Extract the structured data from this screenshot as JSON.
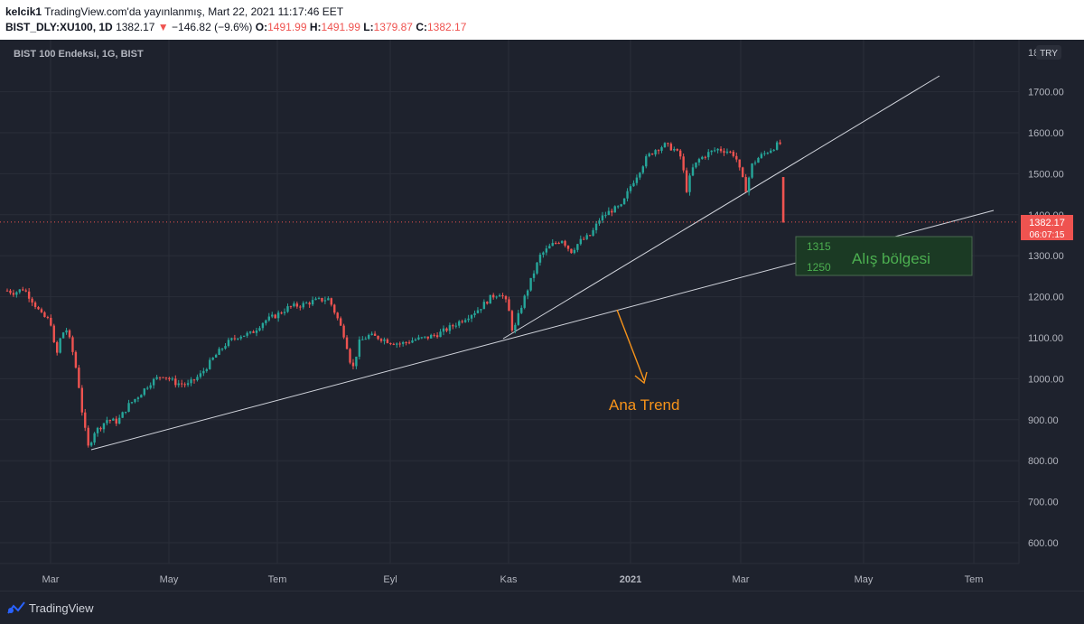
{
  "header": {
    "author": "kelcik1",
    "published": "TradingView.com'da yayınlanmış, Mart 22, 2021 11:17:46 EET",
    "symbol": "BIST_DLY:XU100, 1D",
    "last": "1382.17",
    "change": "−146.82 (−9.6%)",
    "o_label": "O:",
    "o": "1491.99",
    "h_label": "H:",
    "h": "1491.99",
    "l_label": "L:",
    "l": "1379.87",
    "c_label": "C:",
    "c": "1382.17"
  },
  "chart": {
    "legend": "BIST 100 Endeksi, 1G, BIST",
    "currency": "TRY",
    "price_label": "1382.17",
    "countdown": "06:07:15",
    "axis_top_label": "18"
  },
  "annotations": {
    "zone_top": "1315",
    "zone_bottom": "1250",
    "zone_label": "Alış bölgesi",
    "trend_label": "Ana Trend"
  },
  "footer": {
    "brand": "TradingView"
  },
  "colors": {
    "bg": "#1e222d",
    "up": "#26a69a",
    "down": "#ef5350",
    "trendline": "#d1d4dc",
    "zone_fill": "#1b3a24",
    "zone_text": "#4caf50",
    "annotation": "#f7931a",
    "grid": "#2a2e39",
    "axis_text": "#b2b5be"
  },
  "chart_data": {
    "type": "candlestick",
    "symbol": "BIST_DLY:XU100",
    "interval": "1D",
    "ylim": [
      550,
      1800
    ],
    "y_ticks": [
      600,
      700,
      800,
      900,
      1000,
      1100,
      1200,
      1300,
      1400,
      1500,
      1600,
      1700
    ],
    "x_tick_labels": [
      "Mar",
      "May",
      "Tem",
      "Eyl",
      "Kas",
      "2021",
      "Mar",
      "May",
      "Tem"
    ],
    "last_price": 1382.17,
    "price_path": [
      [
        0,
        1215
      ],
      [
        8,
        1210
      ],
      [
        18,
        1220
      ],
      [
        28,
        1190
      ],
      [
        38,
        1155
      ],
      [
        48,
        1140
      ],
      [
        54,
        1050
      ],
      [
        60,
        1110
      ],
      [
        66,
        1120
      ],
      [
        72,
        1070
      ],
      [
        78,
        1005
      ],
      [
        84,
        900
      ],
      [
        90,
        830
      ],
      [
        96,
        870
      ],
      [
        102,
        880
      ],
      [
        110,
        900
      ],
      [
        122,
        895
      ],
      [
        134,
        935
      ],
      [
        146,
        960
      ],
      [
        158,
        990
      ],
      [
        172,
        1010
      ],
      [
        186,
        990
      ],
      [
        200,
        985
      ],
      [
        214,
        1010
      ],
      [
        228,
        1050
      ],
      [
        242,
        1085
      ],
      [
        256,
        1105
      ],
      [
        270,
        1110
      ],
      [
        284,
        1140
      ],
      [
        298,
        1155
      ],
      [
        312,
        1175
      ],
      [
        326,
        1180
      ],
      [
        340,
        1190
      ],
      [
        356,
        1195
      ],
      [
        366,
        1145
      ],
      [
        374,
        1100
      ],
      [
        382,
        1020
      ],
      [
        390,
        1090
      ],
      [
        400,
        1105
      ],
      [
        412,
        1100
      ],
      [
        424,
        1090
      ],
      [
        436,
        1085
      ],
      [
        450,
        1095
      ],
      [
        464,
        1100
      ],
      [
        478,
        1110
      ],
      [
        494,
        1130
      ],
      [
        508,
        1150
      ],
      [
        522,
        1170
      ],
      [
        536,
        1200
      ],
      [
        546,
        1210
      ],
      [
        554,
        1180
      ],
      [
        560,
        1110
      ],
      [
        568,
        1170
      ],
      [
        578,
        1230
      ],
      [
        590,
        1300
      ],
      [
        602,
        1325
      ],
      [
        614,
        1340
      ],
      [
        624,
        1310
      ],
      [
        634,
        1335
      ],
      [
        646,
        1350
      ],
      [
        656,
        1390
      ],
      [
        668,
        1410
      ],
      [
        680,
        1420
      ],
      [
        690,
        1470
      ],
      [
        698,
        1500
      ],
      [
        708,
        1540
      ],
      [
        718,
        1560
      ],
      [
        728,
        1570
      ],
      [
        738,
        1560
      ],
      [
        746,
        1540
      ],
      [
        752,
        1460
      ],
      [
        758,
        1510
      ],
      [
        766,
        1535
      ],
      [
        776,
        1550
      ],
      [
        786,
        1560
      ],
      [
        798,
        1555
      ],
      [
        806,
        1545
      ],
      [
        812,
        1500
      ],
      [
        818,
        1460
      ],
      [
        824,
        1520
      ],
      [
        832,
        1540
      ],
      [
        842,
        1555
      ],
      [
        852,
        1570
      ],
      [
        858,
        1575
      ],
      [
        864,
        1530
      ]
    ],
    "last_candle": {
      "open": 1491.99,
      "high": 1491.99,
      "low": 1379.87,
      "close": 1382.17
    },
    "trendlines": [
      {
        "name": "main-trend",
        "from": [
          "2020-03-19",
          830
        ],
        "to": [
          "2021-07-15",
          1410
        ]
      },
      {
        "name": "short-trend",
        "from": [
          "2020-10-30",
          1100
        ],
        "to": [
          "2021-06-25",
          1740
        ]
      }
    ],
    "zone": {
      "label": "Alış bölgesi",
      "top": 1315,
      "bottom": 1250
    }
  }
}
